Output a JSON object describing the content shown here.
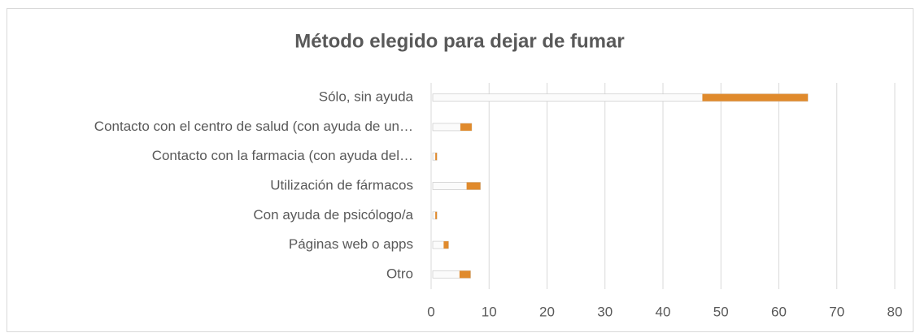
{
  "chart_data": {
    "type": "bar",
    "orientation": "horizontal",
    "title": "Método elegido para dejar de fumar",
    "categories": [
      "Sólo, sin ayuda",
      "Contacto con el centro de salud (con ayuda de un…",
      "Contacto con la farmacia (con ayuda del…",
      "Utilización de fármacos",
      "Con ayuda de psicólogo/a",
      "Páginas web o apps",
      "Otro"
    ],
    "values": [
      65,
      7,
      1,
      8.5,
      1,
      3,
      6.8
    ],
    "color": "#e08a2c",
    "xlim": [
      0,
      80
    ],
    "xticks": [
      0,
      10,
      20,
      30,
      40,
      50,
      60,
      70,
      80
    ],
    "grid": true
  }
}
